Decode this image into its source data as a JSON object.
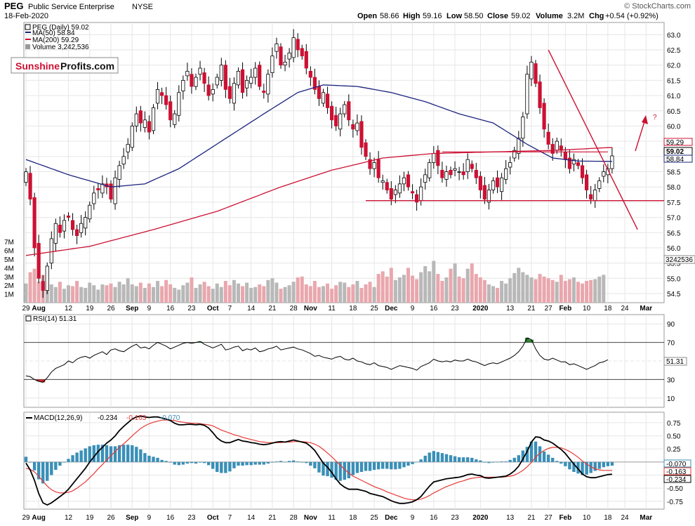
{
  "header": {
    "symbol": "PEG",
    "company": "Public Service Enterprise",
    "exchange": "NYSE",
    "date": "18-Feb-2020",
    "source": "© StockCharts.com",
    "quote": {
      "open_label": "Open",
      "open": "58.66",
      "high_label": "High",
      "high": "59.16",
      "low_label": "Low",
      "low": "58.50",
      "close_label": "Close",
      "close": "59.02",
      "volume_label": "Volume",
      "volume": "3.2M",
      "chg_label": "Chg",
      "chg": "+0.54 (+0.92%)"
    }
  },
  "logo": {
    "part1": "Sunshine",
    "part2": "Profits.com"
  },
  "legend": {
    "price": "PEG (Daily) 59.02",
    "ma50": "MA(50) 58.84",
    "ma200": "MA(200) 59.29",
    "volume": "Volume 3,242,536"
  },
  "colors": {
    "up": "#ffffff",
    "down": "#cc1133",
    "ma50": "#1a237e",
    "ma200": "#cc1133",
    "vol_up": "#b8b8b8",
    "vol_down": "#e9a7ad",
    "grid": "#e6e6e6",
    "rsi": "#000000",
    "rsi_over": "#2e7d32",
    "rsi_under": "#c62828",
    "macd": "#000000",
    "signal": "#e53935",
    "hist": "#3a8fb7",
    "annot": "#cc1133"
  },
  "chart_data": [
    {
      "type": "candlestick",
      "name": "PEG (Daily)",
      "ylim": [
        54.2,
        63.4
      ],
      "yticks": [
        "54.5",
        "55.0",
        "55.5",
        "56.0",
        "56.5",
        "57.0",
        "57.5",
        "58.0",
        "58.5",
        "59.0",
        "59.5",
        "60.0",
        "60.5",
        "61.0",
        "61.5",
        "62.0",
        "62.5",
        "63.0"
      ],
      "xticks": [
        {
          "label": "29",
          "i": 0
        },
        {
          "label": "Aug",
          "i": 3
        },
        {
          "label": "12",
          "i": 10
        },
        {
          "label": "19",
          "i": 15
        },
        {
          "label": "26",
          "i": 20
        },
        {
          "label": "Sep",
          "i": 25
        },
        {
          "label": "9",
          "i": 29
        },
        {
          "label": "16",
          "i": 34
        },
        {
          "label": "23",
          "i": 39
        },
        {
          "label": "Oct",
          "i": 44
        },
        {
          "label": "7",
          "i": 48
        },
        {
          "label": "14",
          "i": 53
        },
        {
          "label": "21",
          "i": 58
        },
        {
          "label": "28",
          "i": 63
        },
        {
          "label": "Nov",
          "i": 67
        },
        {
          "label": "11",
          "i": 72
        },
        {
          "label": "18",
          "i": 77
        },
        {
          "label": "25",
          "i": 82
        },
        {
          "label": "Dec",
          "i": 86
        },
        {
          "label": "9",
          "i": 91
        },
        {
          "label": "16",
          "i": 96
        },
        {
          "label": "23",
          "i": 101
        },
        {
          "label": "2020",
          "i": 107
        },
        {
          "label": "13",
          "i": 114
        },
        {
          "label": "21",
          "i": 119
        },
        {
          "label": "27",
          "i": 123
        },
        {
          "label": "Feb",
          "i": 127
        },
        {
          "label": "10",
          "i": 132
        },
        {
          "label": "18",
          "i": 137
        },
        {
          "label": "24",
          "i": 141
        },
        {
          "label": "Mar",
          "i": 146
        }
      ],
      "closes": [
        58.5,
        57.6,
        56.0,
        55.0,
        54.6,
        55.4,
        56.3,
        56.8,
        56.5,
        56.9,
        57.0,
        56.6,
        56.4,
        56.8,
        57.0,
        57.4,
        57.8,
        57.9,
        58.1,
        58.0,
        57.6,
        58.3,
        58.7,
        59.0,
        59.4,
        60.0,
        60.4,
        60.1,
        60.2,
        59.8,
        60.6,
        61.2,
        61.0,
        60.7,
        60.2,
        60.4,
        61.1,
        61.5,
        61.8,
        61.3,
        61.6,
        61.9,
        61.4,
        61.0,
        61.2,
        61.6,
        62.0,
        61.2,
        60.9,
        61.4,
        61.8,
        61.1,
        61.5,
        61.6,
        61.9,
        61.3,
        61.1,
        61.7,
        62.3,
        62.7,
        62.0,
        62.1,
        62.4,
        62.9,
        62.5,
        62.3,
        61.9,
        61.6,
        61.2,
        60.9,
        61.1,
        60.6,
        60.2,
        60.0,
        60.4,
        60.7,
        60.2,
        59.9,
        60.1,
        59.3,
        59.0,
        58.6,
        58.8,
        58.3,
        58.2,
        57.9,
        57.6,
        57.9,
        58.1,
        58.3,
        58.0,
        57.8,
        57.5,
        58.0,
        58.4,
        58.8,
        59.1,
        58.7,
        58.3,
        58.5,
        58.4,
        58.6,
        58.5,
        58.4,
        58.9,
        58.6,
        58.3,
        57.9,
        57.6,
        57.9,
        58.2,
        58.0,
        58.3,
        58.6,
        58.8,
        59.2,
        59.6,
        60.3,
        61.7,
        62.1,
        61.4,
        60.6,
        59.9,
        59.4,
        59.1,
        59.5,
        59.2,
        58.9,
        58.6,
        58.9,
        58.7,
        58.3,
        57.9,
        57.6,
        57.9,
        58.2,
        58.5,
        58.6,
        59.02
      ],
      "series": [
        {
          "name": "MA(50)",
          "last": 58.84,
          "points": [
            [
              0,
              58.9
            ],
            [
              10,
              58.4
            ],
            [
              20,
              58.0
            ],
            [
              28,
              58.1
            ],
            [
              36,
              58.6
            ],
            [
              46,
              59.5
            ],
            [
              56,
              60.4
            ],
            [
              64,
              61.1
            ],
            [
              70,
              61.35
            ],
            [
              78,
              61.3
            ],
            [
              86,
              61.1
            ],
            [
              94,
              60.8
            ],
            [
              102,
              60.4
            ],
            [
              110,
              60.1
            ],
            [
              118,
              59.4
            ],
            [
              124,
              58.95
            ],
            [
              130,
              58.85
            ],
            [
              137,
              58.84
            ]
          ]
        },
        {
          "name": "MA(200)",
          "last": 59.29,
          "points": [
            [
              0,
              55.75
            ],
            [
              15,
              56.05
            ],
            [
              30,
              56.6
            ],
            [
              45,
              57.2
            ],
            [
              60,
              58.0
            ],
            [
              72,
              58.55
            ],
            [
              84,
              58.95
            ],
            [
              96,
              59.1
            ],
            [
              110,
              59.15
            ],
            [
              124,
              59.2
            ],
            [
              137,
              59.29
            ]
          ]
        }
      ],
      "annotations": {
        "support": 57.55,
        "resistance": 59.15,
        "trend_top": [
          123,
          62.5
        ],
        "trend_bottom": [
          144,
          56.6
        ]
      }
    },
    {
      "type": "bar",
      "name": "Volume",
      "last": "3242536",
      "yticks": [
        "1M",
        "2M",
        "3M",
        "4M",
        "5M",
        "6M",
        "7M"
      ],
      "values": [
        2.2,
        3.5,
        3.9,
        2.4,
        3.2,
        2.0,
        2.1,
        1.8,
        2.4,
        1.6,
        2.0,
        1.9,
        2.5,
        1.8,
        1.7,
        2.3,
        2.0,
        1.5,
        2.1,
        2.0,
        2.2,
        1.8,
        2.4,
        2.1,
        2.8,
        2.1,
        1.9,
        2.3,
        1.7,
        2.2,
        1.8,
        2.5,
        1.9,
        2.6,
        2.1,
        1.7,
        1.5,
        2.0,
        2.3,
        2.9,
        1.7,
        2.1,
        2.4,
        1.9,
        1.6,
        2.2,
        1.8,
        2.5,
        2.0,
        2.6,
        2.2,
        1.9,
        2.3,
        1.7,
        1.8,
        2.1,
        1.9,
        2.6,
        2.8,
        2.3,
        1.6,
        1.8,
        2.0,
        2.4,
        2.9,
        3.0,
        2.1,
        1.9,
        2.5,
        1.8,
        1.9,
        2.2,
        1.6,
        2.0,
        2.4,
        2.3,
        1.8,
        2.1,
        2.5,
        1.7,
        2.1,
        2.4,
        1.8,
        3.3,
        3.6,
        3.0,
        4.0,
        2.6,
        2.9,
        3.2,
        4.0,
        3.1,
        2.7,
        3.5,
        4.2,
        3.6,
        4.8,
        3.3,
        2.5,
        2.9,
        3.9,
        4.5,
        3.0,
        2.8,
        3.9,
        4.5,
        3.3,
        2.9,
        2.6,
        2.1,
        1.9,
        1.7,
        2.5,
        2.2,
        2.8,
        3.4,
        4.0,
        3.5,
        3.2,
        2.9,
        2.7,
        3.3,
        3.0,
        2.8,
        2.6,
        2.4,
        3.2,
        2.5,
        2.7,
        2.9,
        2.4,
        2.2,
        2.5,
        2.6,
        2.7,
        3.0,
        3.2
      ]
    },
    {
      "type": "line",
      "name": "RSI(14)",
      "label": "RSI(14) 51.31",
      "last": "51.31",
      "ylim": [
        0,
        100
      ],
      "yticks": [
        "10",
        "30",
        "50",
        "70",
        "90"
      ],
      "values": [
        34,
        33,
        30,
        28,
        27,
        32,
        38,
        42,
        44,
        46,
        50,
        48,
        52,
        54,
        55,
        53,
        56,
        58,
        60,
        57,
        62,
        63,
        61,
        60,
        63,
        66,
        68,
        64,
        65,
        63,
        67,
        70,
        68,
        66,
        63,
        65,
        67,
        69,
        70,
        69,
        70,
        71,
        68,
        66,
        64,
        66,
        68,
        62,
        63,
        65,
        66,
        61,
        63,
        62,
        64,
        60,
        61,
        63,
        64,
        66,
        62,
        63,
        64,
        65,
        63,
        62,
        60,
        58,
        55,
        56,
        54,
        53,
        52,
        54,
        55,
        52,
        51,
        53,
        50,
        49,
        47,
        46,
        48,
        45,
        44,
        43,
        41,
        43,
        45,
        44,
        43,
        42,
        40,
        44,
        46,
        48,
        52,
        50,
        49,
        50,
        49,
        51,
        50,
        50,
        52,
        50,
        49,
        47,
        45,
        47,
        48,
        47,
        49,
        51,
        53,
        56,
        60,
        66,
        75,
        73,
        63,
        56,
        52,
        51,
        53,
        51,
        49,
        49,
        46,
        47,
        45,
        43,
        41,
        43,
        45,
        48,
        49,
        51.31
      ]
    },
    {
      "type": "line",
      "name": "MACD(12,26,9)",
      "labels": {
        "main": "MACD(12,26,9)",
        "macd": "-0.234",
        "signal": "-0.163",
        "hist": "-0.070"
      },
      "ylim": [
        -0.9,
        0.95
      ],
      "yticks": [
        "-0.75",
        "-0.50",
        "-0.25",
        "0.00",
        "0.25",
        "0.50",
        "0.75"
      ],
      "macd": [
        -0.02,
        -0.15,
        -0.35,
        -0.6,
        -0.78,
        -0.82,
        -0.78,
        -0.72,
        -0.66,
        -0.6,
        -0.52,
        -0.42,
        -0.32,
        -0.22,
        -0.12,
        0.0,
        0.1,
        0.2,
        0.28,
        0.36,
        0.42,
        0.5,
        0.6,
        0.68,
        0.75,
        0.82,
        0.86,
        0.88,
        0.86,
        0.85,
        0.86,
        0.86,
        0.84,
        0.82,
        0.79,
        0.74,
        0.71,
        0.71,
        0.72,
        0.72,
        0.71,
        0.72,
        0.7,
        0.65,
        0.56,
        0.46,
        0.4,
        0.37,
        0.37,
        0.4,
        0.43,
        0.4,
        0.39,
        0.37,
        0.36,
        0.34,
        0.33,
        0.34,
        0.36,
        0.38,
        0.39,
        0.38,
        0.4,
        0.42,
        0.4,
        0.38,
        0.36,
        0.3,
        0.22,
        0.1,
        -0.02,
        -0.1,
        -0.2,
        -0.32,
        -0.42,
        -0.48,
        -0.52,
        -0.52,
        -0.52,
        -0.54,
        -0.56,
        -0.6,
        -0.62,
        -0.64,
        -0.66,
        -0.7,
        -0.74,
        -0.77,
        -0.79,
        -0.79,
        -0.78,
        -0.76,
        -0.72,
        -0.66,
        -0.56,
        -0.46,
        -0.38,
        -0.36,
        -0.34,
        -0.32,
        -0.31,
        -0.3,
        -0.29,
        -0.27,
        -0.24,
        -0.23,
        -0.25,
        -0.26,
        -0.3,
        -0.31,
        -0.3,
        -0.29,
        -0.28,
        -0.27,
        -0.23,
        -0.17,
        -0.08,
        0.06,
        0.2,
        0.38,
        0.48,
        0.47,
        0.42,
        0.4,
        0.36,
        0.3,
        0.24,
        0.16,
        0.06,
        -0.04,
        -0.13,
        -0.23,
        -0.28,
        -0.3,
        -0.3,
        -0.28,
        -0.26,
        -0.24,
        -0.234
      ],
      "signal": [
        -0.12,
        -0.14,
        -0.19,
        -0.27,
        -0.37,
        -0.46,
        -0.53,
        -0.57,
        -0.59,
        -0.59,
        -0.58,
        -0.55,
        -0.5,
        -0.44,
        -0.38,
        -0.3,
        -0.22,
        -0.13,
        -0.05,
        0.04,
        0.12,
        0.2,
        0.28,
        0.35,
        0.42,
        0.5,
        0.57,
        0.64,
        0.69,
        0.73,
        0.76,
        0.78,
        0.8,
        0.8,
        0.8,
        0.79,
        0.77,
        0.76,
        0.75,
        0.74,
        0.74,
        0.73,
        0.72,
        0.71,
        0.69,
        0.65,
        0.61,
        0.58,
        0.55,
        0.52,
        0.5,
        0.47,
        0.45,
        0.43,
        0.41,
        0.39,
        0.38,
        0.37,
        0.37,
        0.37,
        0.37,
        0.38,
        0.38,
        0.39,
        0.39,
        0.39,
        0.38,
        0.37,
        0.34,
        0.3,
        0.24,
        0.17,
        0.1,
        0.02,
        -0.06,
        -0.14,
        -0.21,
        -0.27,
        -0.31,
        -0.35,
        -0.39,
        -0.43,
        -0.47,
        -0.5,
        -0.53,
        -0.57,
        -0.6,
        -0.63,
        -0.66,
        -0.69,
        -0.71,
        -0.72,
        -0.72,
        -0.71,
        -0.68,
        -0.64,
        -0.59,
        -0.55,
        -0.51,
        -0.47,
        -0.44,
        -0.41,
        -0.38,
        -0.36,
        -0.33,
        -0.31,
        -0.3,
        -0.29,
        -0.29,
        -0.29,
        -0.29,
        -0.29,
        -0.29,
        -0.28,
        -0.27,
        -0.25,
        -0.21,
        -0.16,
        -0.09,
        -0.01,
        0.09,
        0.17,
        0.22,
        0.26,
        0.28,
        0.28,
        0.27,
        0.24,
        0.2,
        0.15,
        0.09,
        0.02,
        -0.04,
        -0.09,
        -0.13,
        -0.15,
        -0.16,
        -0.16,
        -0.163
      ]
    }
  ]
}
